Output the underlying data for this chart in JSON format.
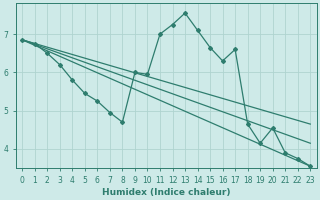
{
  "xlabel": "Humidex (Indice chaleur)",
  "bg_color": "#ceeae8",
  "line_color": "#2e7d6e",
  "grid_color": "#afd4d0",
  "xlim": [
    -0.5,
    23.5
  ],
  "ylim": [
    3.5,
    7.8
  ],
  "yticks": [
    4,
    5,
    6,
    7
  ],
  "xticks": [
    0,
    1,
    2,
    3,
    4,
    5,
    6,
    7,
    8,
    9,
    10,
    11,
    12,
    13,
    14,
    15,
    16,
    17,
    18,
    19,
    20,
    21,
    22,
    23
  ],
  "zigzag": [
    6.85,
    6.75,
    6.5,
    6.2,
    5.8,
    5.45,
    5.25,
    4.95,
    4.7,
    6.0,
    5.95,
    7.0,
    7.25,
    7.55,
    7.1,
    6.65,
    6.3,
    6.6,
    4.65,
    4.15,
    4.55,
    3.9,
    3.75,
    3.55
  ],
  "straight_lines": [
    [
      6.85,
      4.65
    ],
    [
      6.85,
      4.15
    ],
    [
      6.85,
      3.55
    ]
  ]
}
